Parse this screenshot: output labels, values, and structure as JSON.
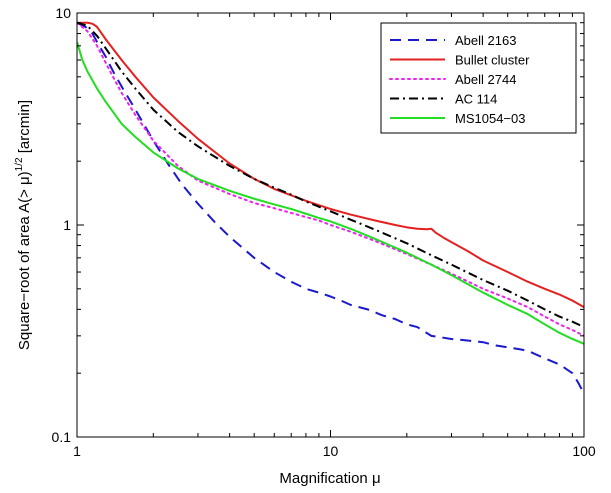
{
  "chart_data": {
    "type": "line",
    "title": "",
    "xlabel": "Magnification μ",
    "ylabel": "Square−root of area A(> μ)",
    "ylabel_sup": "1/2",
    "ylabel_unit": "[arcmin]",
    "xscale": "log",
    "yscale": "log",
    "xlim": [
      1,
      100
    ],
    "ylim": [
      0.1,
      10
    ],
    "xticks": [
      1,
      10,
      100
    ],
    "xtick_labels": [
      "1",
      "10",
      "100"
    ],
    "yticks": [
      0.1,
      1,
      10
    ],
    "ytick_labels": [
      "0.1",
      "1",
      "10"
    ],
    "grid": false,
    "legend_position": "top-right",
    "series": [
      {
        "name": "Abell 2163",
        "color": "#1a1acc",
        "dash": "dashed",
        "x": [
          1.0,
          1.08,
          1.15,
          1.2,
          1.3,
          1.4,
          1.5,
          1.7,
          2.0,
          2.3,
          2.6,
          3.0,
          3.5,
          4.0,
          5.0,
          6.0,
          7.0,
          8.0,
          9.0,
          10.0,
          11.0,
          12.0,
          14.0,
          16.0,
          18.0,
          20.0,
          22.0,
          25.0,
          30.0,
          35.0,
          40.0,
          45.0,
          50.0,
          55.0,
          60.0,
          70.0,
          80.0,
          90.0,
          95.0,
          100.0
        ],
        "y": [
          9.0,
          8.6,
          8.0,
          7.3,
          6.2,
          5.2,
          4.5,
          3.5,
          2.5,
          1.92,
          1.55,
          1.26,
          1.03,
          0.88,
          0.7,
          0.6,
          0.54,
          0.5,
          0.48,
          0.46,
          0.44,
          0.42,
          0.4,
          0.375,
          0.36,
          0.34,
          0.33,
          0.3,
          0.29,
          0.285,
          0.28,
          0.27,
          0.265,
          0.26,
          0.255,
          0.235,
          0.22,
          0.2,
          0.18,
          0.16
        ]
      },
      {
        "name": "Bullet cluster",
        "color": "#e52020",
        "dash": "solid",
        "x": [
          1.0,
          1.1,
          1.15,
          1.2,
          1.3,
          1.5,
          1.7,
          2.0,
          2.5,
          3.0,
          4.0,
          5.0,
          6.0,
          7.0,
          8.0,
          9.0,
          10.0,
          12.0,
          15.0,
          18.0,
          20.0,
          22.0,
          24.0,
          25.0,
          26.0,
          28.0,
          30.0,
          35.0,
          40.0,
          50.0,
          60.0,
          70.0,
          80.0,
          90.0,
          100.0
        ],
        "y": [
          9.0,
          9.0,
          8.9,
          8.6,
          7.5,
          6.0,
          5.0,
          4.0,
          3.1,
          2.55,
          1.95,
          1.65,
          1.48,
          1.38,
          1.3,
          1.24,
          1.19,
          1.12,
          1.05,
          1.0,
          0.975,
          0.96,
          0.955,
          0.96,
          0.92,
          0.87,
          0.83,
          0.75,
          0.68,
          0.6,
          0.54,
          0.5,
          0.47,
          0.44,
          0.41
        ]
      },
      {
        "name": "Abell 2744",
        "color": "#ee22ee",
        "dash": "dotted",
        "x": [
          1.0,
          1.1,
          1.2,
          1.3,
          1.4,
          1.5,
          1.7,
          2.0,
          2.5,
          3.0,
          4.0,
          5.0,
          6.0,
          7.0,
          8.0,
          9.0,
          10.0,
          12.0,
          15.0,
          20.0,
          25.0,
          30.0,
          40.0,
          50.0,
          60.0,
          70.0,
          80.0,
          90.0,
          100.0
        ],
        "y": [
          9.0,
          8.2,
          7.0,
          5.8,
          4.9,
          4.2,
          3.3,
          2.5,
          1.9,
          1.62,
          1.4,
          1.27,
          1.2,
          1.14,
          1.09,
          1.05,
          1.0,
          0.93,
          0.84,
          0.73,
          0.65,
          0.59,
          0.5,
          0.45,
          0.41,
          0.37,
          0.34,
          0.32,
          0.3
        ]
      },
      {
        "name": "AC 114",
        "color": "#000000",
        "dash": "dashdot",
        "x": [
          1.0,
          1.1,
          1.2,
          1.3,
          1.5,
          1.7,
          2.0,
          2.5,
          3.0,
          4.0,
          5.0,
          6.0,
          7.0,
          8.0,
          10.0,
          12.0,
          15.0,
          20.0,
          25.0,
          30.0,
          40.0,
          50.0,
          60.0,
          70.0,
          80.0,
          90.0,
          100.0
        ],
        "y": [
          9.0,
          8.7,
          7.8,
          6.8,
          5.3,
          4.4,
          3.5,
          2.75,
          2.35,
          1.9,
          1.65,
          1.5,
          1.39,
          1.29,
          1.16,
          1.06,
          0.95,
          0.82,
          0.72,
          0.65,
          0.55,
          0.49,
          0.44,
          0.4,
          0.37,
          0.35,
          0.33
        ]
      },
      {
        "name": "MS1054−03",
        "color": "#22dd22",
        "dash": "solid",
        "x": [
          1.0,
          1.05,
          1.1,
          1.2,
          1.3,
          1.5,
          1.7,
          2.0,
          2.5,
          3.0,
          4.0,
          5.0,
          6.0,
          7.0,
          8.0,
          9.0,
          10.0,
          12.0,
          15.0,
          20.0,
          25.0,
          30.0,
          40.0,
          50.0,
          60.0,
          70.0,
          80.0,
          90.0,
          100.0
        ],
        "y": [
          7.3,
          6.0,
          5.3,
          4.4,
          3.8,
          3.0,
          2.6,
          2.2,
          1.85,
          1.65,
          1.45,
          1.33,
          1.25,
          1.19,
          1.13,
          1.08,
          1.04,
          0.96,
          0.86,
          0.74,
          0.65,
          0.58,
          0.48,
          0.42,
          0.38,
          0.34,
          0.31,
          0.29,
          0.275
        ]
      }
    ]
  }
}
